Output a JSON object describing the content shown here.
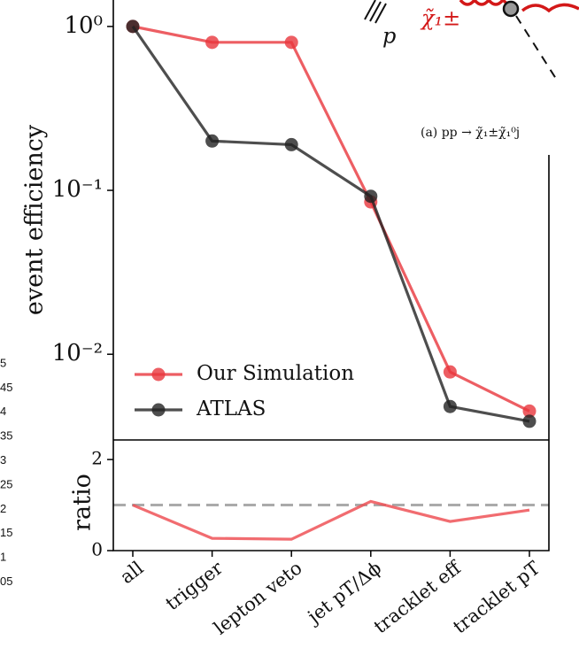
{
  "chart_data": [
    {
      "type": "line",
      "log_y": true,
      "ylabel": "event efficiency",
      "categories": [
        "all",
        "trigger",
        "lepton veto",
        "jet pT/Δϕ",
        "tracklet eff",
        "tracklet pT"
      ],
      "ylim": [
        0.003,
        1.45
      ],
      "yticks": [
        {
          "value": 1,
          "label": "10⁰"
        },
        {
          "value": 0.1,
          "label": "10⁻¹"
        },
        {
          "value": 0.01,
          "label": "10⁻²"
        }
      ],
      "legend": "lower left",
      "series": [
        {
          "name": "Our Simulation",
          "color": "#e8363c",
          "values": [
            1,
            0.8,
            0.8,
            0.085,
            0.0078,
            0.0045
          ]
        },
        {
          "name": "ATLAS",
          "color": "#222222",
          "values": [
            1,
            0.2,
            0.19,
            0.092,
            0.0048,
            0.0039
          ]
        }
      ]
    },
    {
      "type": "line",
      "ylabel": "ratio",
      "ylim": [
        0,
        2.43
      ],
      "yticks": [
        0,
        2
      ],
      "reference_line": 1,
      "series": [
        {
          "color": "#ee5257",
          "values": [
            1,
            0.27,
            0.25,
            1.08,
            0.64,
            0.89
          ]
        }
      ]
    }
  ],
  "inset": {
    "particle_p": "p",
    "particle_chargino": "χ̃₁±",
    "caption": "(a) pp → χ̃₁±χ̃₁⁰j"
  },
  "fragment_ticks": [
    "5",
    "45",
    "4",
    "35",
    "3",
    "25",
    "2",
    "15",
    "1",
    "05"
  ]
}
